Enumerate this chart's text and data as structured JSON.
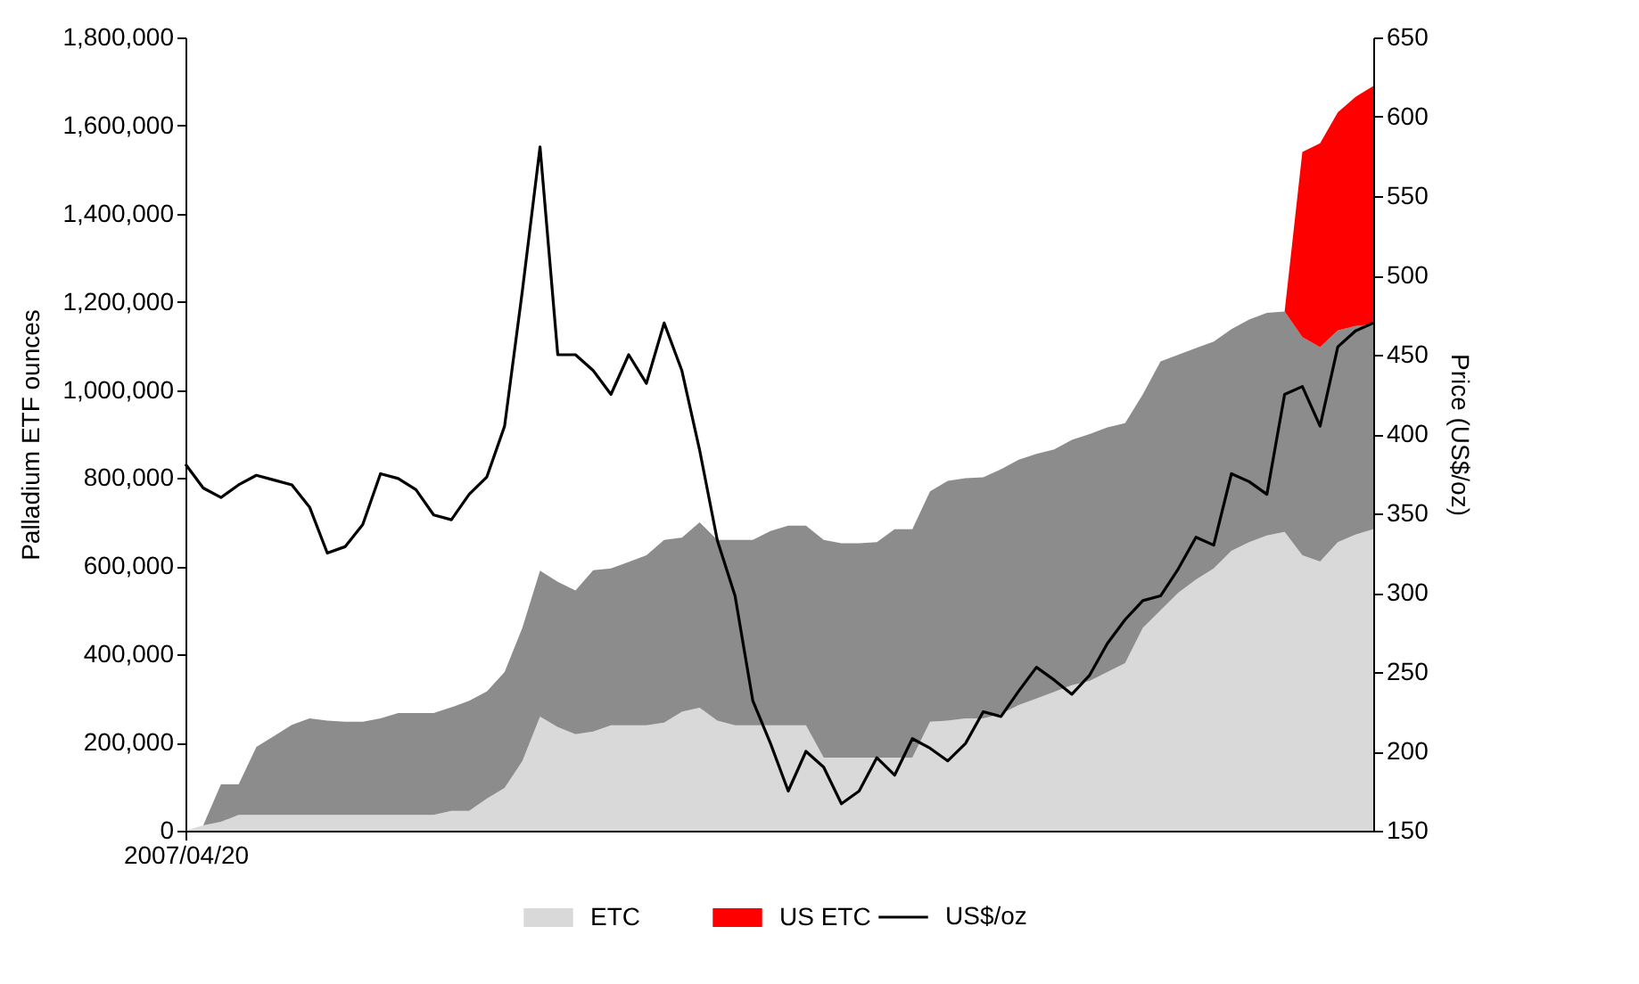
{
  "chart_data": {
    "type": "area",
    "stacked": true,
    "categories": [
      "2007/04/20",
      null,
      null,
      null,
      null,
      null,
      null,
      null,
      null,
      null,
      null,
      null,
      null,
      null,
      null,
      null,
      null,
      null,
      null,
      null,
      null,
      null,
      null,
      null,
      null,
      null,
      null,
      null,
      null,
      null,
      null,
      null,
      null,
      null,
      null,
      null,
      null,
      null,
      null,
      null,
      null,
      null,
      null,
      null,
      null,
      null,
      null,
      null,
      null,
      null,
      null,
      null,
      null,
      null,
      null,
      null,
      null,
      null,
      null,
      null,
      null,
      null,
      null,
      null,
      null,
      null,
      null,
      null
    ],
    "ylabel": "Palladium ETF ounces",
    "y2label": "Price (US$/oz)",
    "ylim": [
      0,
      1800000
    ],
    "yticks": [
      0,
      {
        "value": 200000,
        "label": "200,000"
      },
      {
        "value": 400000,
        "label": "400,000"
      },
      {
        "value": 600000,
        "label": "600,000"
      },
      {
        "value": 800000,
        "label": "800,000"
      },
      {
        "value": 1000000,
        "label": "1,000,000"
      },
      {
        "value": 1200000,
        "label": "1,200,000"
      },
      {
        "value": 1400000,
        "label": "1,400,000"
      },
      {
        "value": 1600000,
        "label": "1,600,000"
      },
      {
        "value": 1800000,
        "label": "1,800,000"
      }
    ],
    "y2lim": [
      150,
      650
    ],
    "y2ticks": [
      150,
      200,
      250,
      300,
      350,
      400,
      450,
      500,
      550,
      600,
      650
    ],
    "legend": "bottom",
    "series": [
      {
        "name": "ETC",
        "type": "area",
        "color": "#d9d9d9",
        "values": [
          0,
          12000,
          20000,
          36000,
          36000,
          36000,
          36000,
          36000,
          36000,
          36000,
          36000,
          36000,
          36000,
          36000,
          36000,
          45000,
          45000,
          73000,
          97000,
          158000,
          259000,
          235000,
          219000,
          225000,
          239000,
          239000,
          239000,
          245000,
          270000,
          279000,
          250000,
          239000,
          239000,
          239000,
          239000,
          239000,
          166000,
          166000,
          166000,
          166000,
          166000,
          166000,
          247000,
          250000,
          255000,
          255000,
          265000,
          285000,
          300000,
          315000,
          330000,
          340000,
          360000,
          380000,
          460000,
          500000,
          540000,
          570000,
          595000,
          635000,
          655000,
          670000,
          678000,
          625000,
          611000,
          655000,
          672000,
          684000
        ]
      },
      {
        "type": "area",
        "color": "#8c8c8c",
        "values": [
          0,
          0,
          85000,
          69000,
          154000,
          179000,
          204000,
          219000,
          214000,
          211000,
          211000,
          219000,
          231000,
          231000,
          231000,
          235000,
          250000,
          243000,
          263000,
          302000,
          331000,
          330000,
          326000,
          366000,
          356000,
          371000,
          386000,
          415000,
          395000,
          421000,
          410000,
          421000,
          421000,
          441000,
          453000,
          453000,
          494000,
          486000,
          486000,
          489000,
          518000,
          518000,
          523000,
          544000,
          545000,
          547000,
          555000,
          557000,
          555000,
          550000,
          557000,
          560000,
          555000,
          545000,
          530000,
          565000,
          540000,
          525000,
          515000,
          503000,
          505000,
          505000,
          500000,
          495000,
          486000,
          480000,
          473000,
          466000
        ]
      },
      {
        "name": "US ETC",
        "type": "area",
        "color": "#ff0000",
        "values": [
          0,
          0,
          0,
          0,
          0,
          0,
          0,
          0,
          0,
          0,
          0,
          0,
          0,
          0,
          0,
          0,
          0,
          0,
          0,
          0,
          0,
          0,
          0,
          0,
          0,
          0,
          0,
          0,
          0,
          0,
          0,
          0,
          0,
          0,
          0,
          0,
          0,
          0,
          0,
          0,
          0,
          0,
          0,
          0,
          0,
          0,
          0,
          0,
          0,
          0,
          0,
          0,
          0,
          0,
          0,
          0,
          0,
          0,
          0,
          0,
          0,
          0,
          0,
          420000,
          463000,
          495000,
          520000,
          540000
        ]
      },
      {
        "name": "US$/oz",
        "type": "line",
        "axis": "y2",
        "color": "#000000",
        "values": [
          381,
          366,
          360,
          368,
          374,
          371,
          368,
          354,
          325,
          329,
          343,
          375,
          372,
          365,
          349,
          346,
          362,
          373,
          405,
          490,
          581,
          450,
          450,
          440,
          425,
          450,
          432,
          470,
          440,
          390,
          333,
          298,
          232,
          205,
          175,
          200,
          190,
          167,
          175,
          196,
          185,
          208,
          202,
          194,
          205,
          225,
          222,
          238,
          253,
          245,
          236,
          248,
          268,
          283,
          295,
          298,
          315,
          335,
          330,
          375,
          370,
          362,
          425,
          430,
          405,
          455,
          465,
          470
        ]
      }
    ]
  }
}
